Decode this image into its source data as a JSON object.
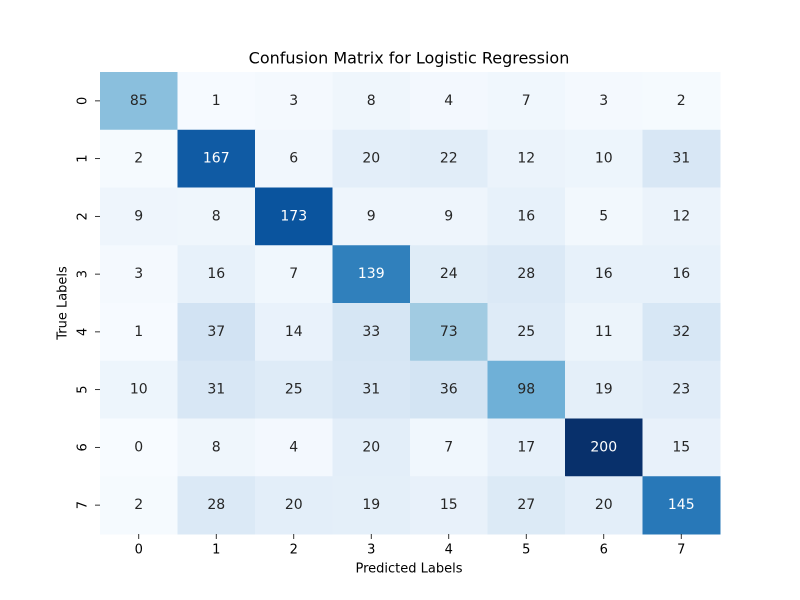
{
  "chart_data": {
    "type": "heatmap",
    "title": "Confusion Matrix for Logistic Regression",
    "xlabel": "Predicted Labels",
    "ylabel": "True Labels",
    "x_categories": [
      "0",
      "1",
      "2",
      "3",
      "4",
      "5",
      "6",
      "7"
    ],
    "y_categories": [
      "0",
      "1",
      "2",
      "3",
      "4",
      "5",
      "6",
      "7"
    ],
    "values": [
      [
        85,
        1,
        3,
        8,
        4,
        7,
        3,
        2
      ],
      [
        2,
        167,
        6,
        20,
        22,
        12,
        10,
        31
      ],
      [
        9,
        8,
        173,
        9,
        9,
        16,
        5,
        12
      ],
      [
        3,
        16,
        7,
        139,
        24,
        28,
        16,
        16
      ],
      [
        1,
        37,
        14,
        33,
        73,
        25,
        11,
        32
      ],
      [
        10,
        31,
        25,
        31,
        36,
        98,
        19,
        23
      ],
      [
        0,
        8,
        4,
        20,
        7,
        17,
        200,
        15
      ],
      [
        2,
        28,
        20,
        19,
        15,
        27,
        20,
        145
      ]
    ],
    "colormap": "Blues",
    "vmin": 0,
    "vmax": 200,
    "colorbar": false
  }
}
